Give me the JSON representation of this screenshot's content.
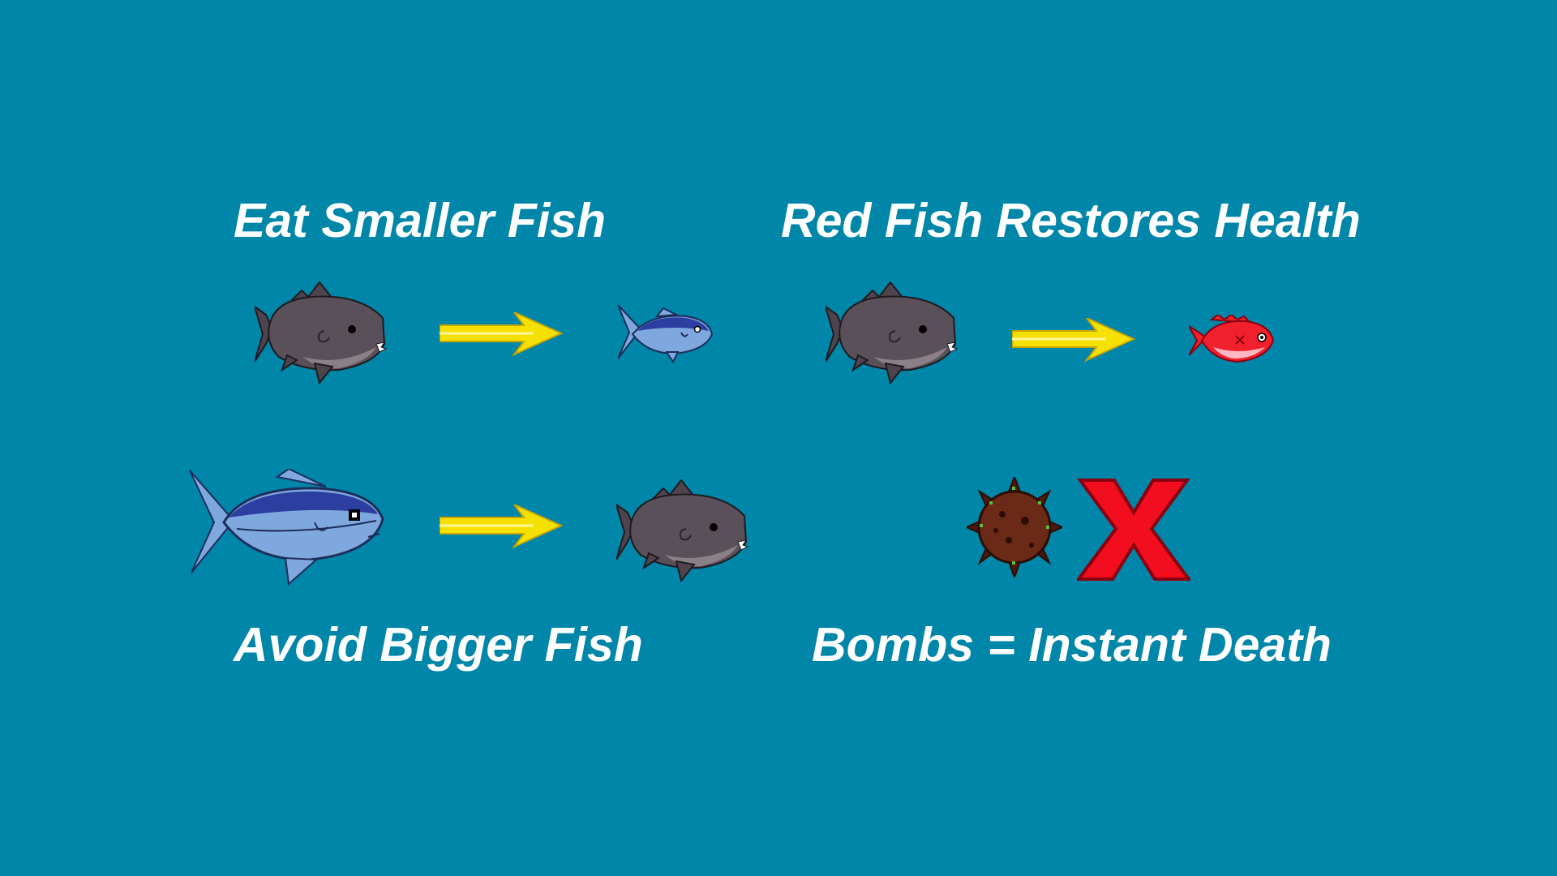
{
  "tutorial": {
    "panels": [
      {
        "caption": "Eat Smaller Fish"
      },
      {
        "caption": "Red Fish Restores Health"
      },
      {
        "caption": "Avoid Bigger Fish"
      },
      {
        "caption": "Bombs = Instant Death"
      }
    ]
  },
  "icons": {
    "player_fish": "shark-icon",
    "arrow": "arrow-right-icon",
    "small_fish": "small-blue-fish-icon",
    "red_fish": "red-fish-icon",
    "big_fish": "big-blue-fish-icon",
    "bomb": "sea-mine-icon",
    "cross": "red-x-icon"
  },
  "colors": {
    "background": "#0086A8",
    "caption_text": "#FFFFFF",
    "arrow": "#F6E000",
    "shark_body": "#4E444E",
    "blue_fish_light": "#7FA8DE",
    "blue_fish_dark": "#2C3FA0",
    "red_fish": "#F0212D",
    "bomb": "#6B2A17",
    "cross": "#F20E1E"
  }
}
